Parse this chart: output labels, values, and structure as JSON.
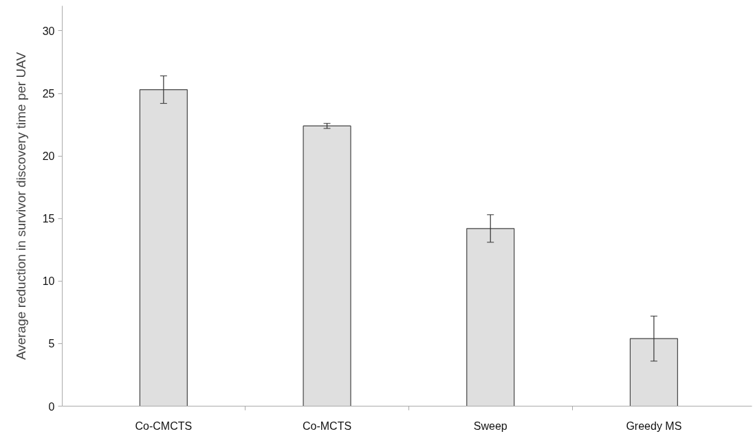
{
  "chart_data": {
    "type": "bar",
    "ylabel": "Average reduction in survivor discovery time per UAV",
    "categories": [
      "Co-CMCTS",
      "Co-MCTS",
      "Sweep",
      "Greedy MS"
    ],
    "values": [
      25.3,
      22.4,
      14.2,
      5.4
    ],
    "errors": [
      1.1,
      0.2,
      1.1,
      1.8
    ],
    "color": "#dfdfdf",
    "ylim": [
      0,
      32
    ],
    "yticks": [
      0,
      5,
      10,
      15,
      20,
      25,
      30
    ],
    "grid": false
  }
}
